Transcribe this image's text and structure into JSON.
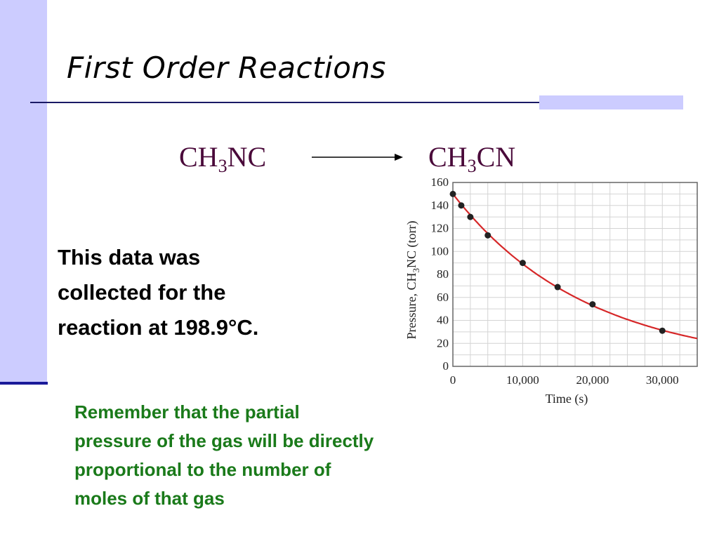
{
  "slide": {
    "title": "First Order Reactions",
    "reaction": {
      "reactant": {
        "base": "CH",
        "sub": "3",
        "rest": "NC"
      },
      "product": {
        "base": "CH",
        "sub": "3",
        "rest": "CN"
      }
    },
    "body": [
      "This data was",
      "collected for the",
      "reaction at 198.9°C."
    ],
    "note": [
      "Remember that the partial",
      "pressure of the gas will be directly",
      "proportional to the number of",
      "moles of that gas"
    ],
    "colors": {
      "sidebar": "#ccccff",
      "rule": "#1a1a66",
      "formula": "#4a0a3a",
      "note": "#1a7a1a",
      "curve": "#d62728",
      "points": "#222222"
    }
  },
  "chart_data": {
    "type": "scatter",
    "xlabel": "Time (s)",
    "ylabel_parts": {
      "before": "Pressure, CH",
      "sub": "3",
      "after": "NC (torr)"
    },
    "xlim": [
      0,
      35000
    ],
    "ylim": [
      0,
      160
    ],
    "xticks": [
      {
        "value": 0,
        "label": "0"
      },
      {
        "value": 10000,
        "label": "10,000"
      },
      {
        "value": 20000,
        "label": "20,000"
      },
      {
        "value": 30000,
        "label": "30,000"
      }
    ],
    "yticks": [
      {
        "value": 0,
        "label": "0"
      },
      {
        "value": 20,
        "label": "20"
      },
      {
        "value": 40,
        "label": "40"
      },
      {
        "value": 60,
        "label": "60"
      },
      {
        "value": 80,
        "label": "80"
      },
      {
        "value": 100,
        "label": "100"
      },
      {
        "value": 120,
        "label": "120"
      },
      {
        "value": 140,
        "label": "140"
      },
      {
        "value": 160,
        "label": "160"
      }
    ],
    "grid": true,
    "series": [
      {
        "values": [
          {
            "x": 0,
            "y": 150
          },
          {
            "x": 1200,
            "y": 140
          },
          {
            "x": 2500,
            "y": 130
          },
          {
            "x": 5000,
            "y": 114
          },
          {
            "x": 10000,
            "y": 90
          },
          {
            "x": 15000,
            "y": 69
          },
          {
            "x": 20000,
            "y": 54
          },
          {
            "x": 30000,
            "y": 31
          }
        ]
      }
    ],
    "fit_curve": {
      "type": "exponential",
      "p0": 150,
      "k": 5.21e-05
    }
  }
}
